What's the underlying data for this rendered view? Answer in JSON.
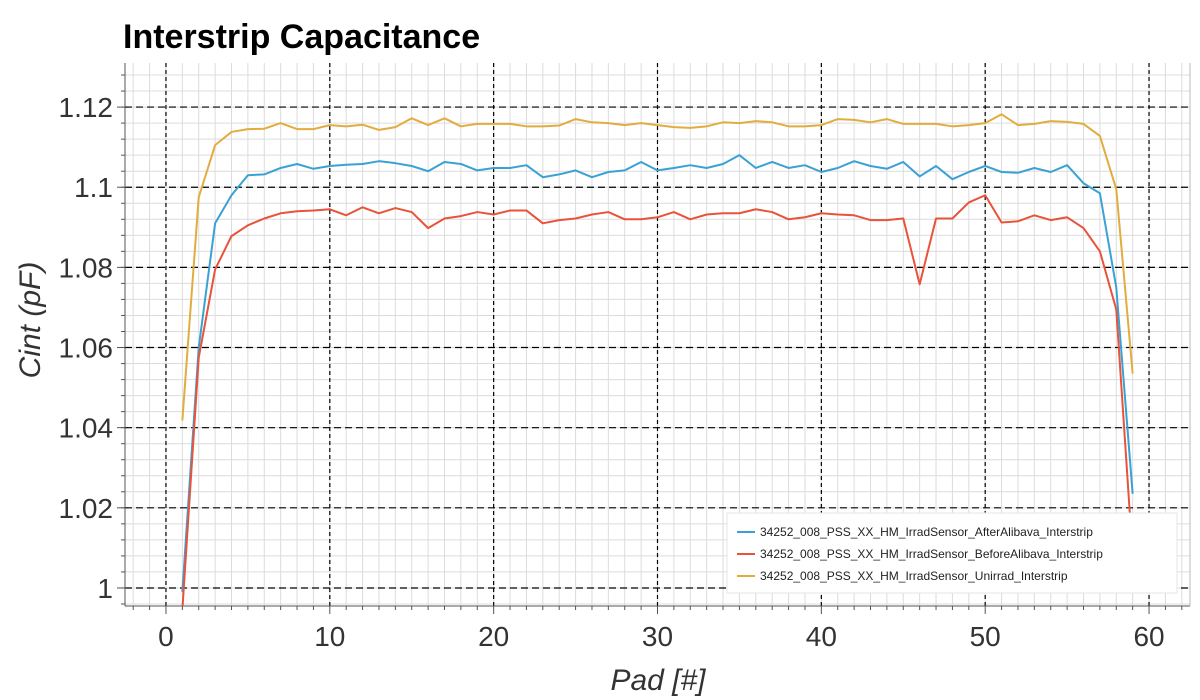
{
  "chart_data": {
    "type": "line",
    "title": "Interstrip Capacitance",
    "xlabel": "Pad [#]",
    "ylabel": "Cint (pF)",
    "xlim": [
      -2.5,
      62.5
    ],
    "ylim": [
      0.9955,
      1.131
    ],
    "xticks": [
      0,
      10,
      20,
      30,
      40,
      50,
      60
    ],
    "yticks": [
      1,
      1.02,
      1.04,
      1.06,
      1.08,
      1.1,
      1.12
    ],
    "xtick_labels": [
      "0",
      "10",
      "20",
      "30",
      "40",
      "50",
      "60"
    ],
    "ytick_labels": [
      "1",
      "1.02",
      "1.04",
      "1.06",
      "1.08",
      "1.1",
      "1.12"
    ],
    "grid": true,
    "legend_position": "bottom-right",
    "series": [
      {
        "name": "34252_008_PSS_XX_HM_IrradSensor_AfterAlibava_Interstrip",
        "color": "#3aa1d4",
        "x": [
          1,
          2,
          3,
          4,
          5,
          6,
          7,
          8,
          9,
          10,
          11,
          12,
          13,
          14,
          15,
          16,
          17,
          18,
          19,
          20,
          21,
          22,
          23,
          24,
          25,
          26,
          27,
          28,
          29,
          30,
          31,
          32,
          33,
          34,
          35,
          36,
          37,
          38,
          39,
          40,
          41,
          42,
          43,
          44,
          45,
          46,
          47,
          48,
          49,
          50,
          51,
          52,
          53,
          54,
          55,
          56,
          57,
          58,
          59
        ],
        "y": [
          0.999,
          1.06,
          1.091,
          1.098,
          1.103,
          1.1032,
          1.1048,
          1.1058,
          1.1046,
          1.1053,
          1.1056,
          1.1058,
          1.1065,
          1.106,
          1.1053,
          1.104,
          1.1063,
          1.1058,
          1.1042,
          1.1048,
          1.1048,
          1.1055,
          1.1025,
          1.1032,
          1.1042,
          1.1025,
          1.1038,
          1.1042,
          1.1063,
          1.1042,
          1.1048,
          1.1055,
          1.1048,
          1.1058,
          1.108,
          1.1048,
          1.1063,
          1.1048,
          1.1055,
          1.1038,
          1.1048,
          1.1065,
          1.1053,
          1.1046,
          1.1063,
          1.1027,
          1.1053,
          1.102,
          1.1038,
          1.1053,
          1.1038,
          1.1036,
          1.1048,
          1.1038,
          1.1055,
          1.101,
          1.0985,
          1.075,
          1.0235
        ]
      },
      {
        "name": "34252_008_PSS_XX_HM_IrradSensor_BeforeAlibava_Interstrip",
        "color": "#e8533a",
        "x": [
          1,
          2,
          3,
          4,
          5,
          6,
          7,
          8,
          9,
          10,
          11,
          12,
          13,
          14,
          15,
          16,
          17,
          18,
          19,
          20,
          21,
          22,
          23,
          24,
          25,
          26,
          27,
          28,
          29,
          30,
          31,
          32,
          33,
          34,
          35,
          36,
          37,
          38,
          39,
          40,
          41,
          42,
          43,
          44,
          45,
          46,
          47,
          48,
          49,
          50,
          51,
          52,
          53,
          54,
          55,
          56,
          57,
          58,
          59
        ],
        "y": [
          0.9945,
          1.0575,
          1.0795,
          1.0878,
          1.0905,
          1.0922,
          1.0935,
          1.094,
          1.0942,
          1.0945,
          1.093,
          1.095,
          1.0935,
          1.0948,
          1.0938,
          1.0898,
          1.0922,
          1.0928,
          1.0938,
          1.0932,
          1.0942,
          1.0942,
          1.091,
          1.0918,
          1.0922,
          1.0932,
          1.0938,
          1.092,
          1.092,
          1.0925,
          1.0938,
          1.092,
          1.0932,
          1.0935,
          1.0935,
          1.0945,
          1.0938,
          1.092,
          1.0925,
          1.0935,
          1.0932,
          1.093,
          1.0918,
          1.0918,
          1.0922,
          1.0758,
          1.0922,
          1.0922,
          1.0962,
          1.098,
          1.0912,
          1.0915,
          1.093,
          1.0918,
          1.0925,
          1.0898,
          1.084,
          1.0695,
          1.008
        ]
      },
      {
        "name": "34252_008_PSS_XX_HM_IrradSensor_Unirrad_Interstrip",
        "color": "#e2ac3f",
        "x": [
          1,
          2,
          3,
          4,
          5,
          6,
          7,
          8,
          9,
          10,
          11,
          12,
          13,
          14,
          15,
          16,
          17,
          18,
          19,
          20,
          21,
          22,
          23,
          24,
          25,
          26,
          27,
          28,
          29,
          30,
          31,
          32,
          33,
          34,
          35,
          36,
          37,
          38,
          39,
          40,
          41,
          42,
          43,
          44,
          45,
          46,
          47,
          48,
          49,
          50,
          51,
          52,
          53,
          54,
          55,
          56,
          57,
          58,
          59
        ],
        "y": [
          1.0418,
          1.0975,
          1.1105,
          1.1138,
          1.1145,
          1.1146,
          1.116,
          1.1145,
          1.1145,
          1.1155,
          1.1152,
          1.1156,
          1.1143,
          1.115,
          1.1172,
          1.1155,
          1.1172,
          1.1152,
          1.1158,
          1.1158,
          1.1158,
          1.1152,
          1.1152,
          1.1154,
          1.117,
          1.1162,
          1.116,
          1.1155,
          1.116,
          1.1155,
          1.115,
          1.1148,
          1.1152,
          1.1162,
          1.116,
          1.1165,
          1.1162,
          1.1152,
          1.1152,
          1.1155,
          1.117,
          1.1168,
          1.1162,
          1.117,
          1.1158,
          1.1158,
          1.1158,
          1.1152,
          1.1155,
          1.116,
          1.1182,
          1.1155,
          1.1158,
          1.1165,
          1.1163,
          1.1158,
          1.1128,
          1.0995,
          1.0535
        ]
      }
    ]
  }
}
